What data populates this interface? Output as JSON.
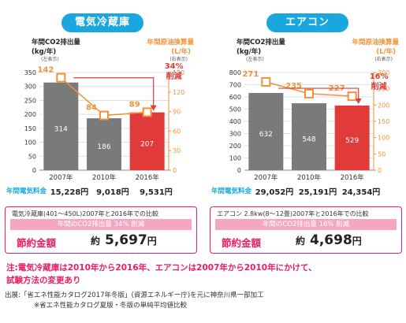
{
  "panels": [
    {
      "id": "fridge",
      "title": "電気冷蔵庫",
      "left_axis_title": "年間CO2排出量",
      "left_axis_unit": "(kg/年)",
      "left_axis_note": "(左表示)",
      "right_axis_title": "年間原油換算量",
      "right_axis_unit": "(L/年)",
      "right_axis_note": "(右表示)",
      "reduction_pct": "34%",
      "reduction_word": "削減",
      "fee_label": "年間電気料金",
      "fees": [
        "15,228円",
        "9,018円",
        "9,531円"
      ],
      "comparison_text": "電気冷蔵庫(401〜450L)2007年と2016年での比較",
      "co2_band_text": "年間のCO2排出量 34% 削減",
      "savings_label": "節約金額",
      "savings_prefix": "約",
      "savings_value": "5,697",
      "savings_unit": "円"
    },
    {
      "id": "ac",
      "title": "エアコン",
      "left_axis_title": "年間CO2排出量",
      "left_axis_unit": "(kg/年)",
      "left_axis_note": "(左表示)",
      "right_axis_title": "年間原油換算量",
      "right_axis_unit": "(L/年)",
      "right_axis_note": "(右表示)",
      "reduction_pct": "16%",
      "reduction_word": "削減",
      "fee_label": "年間電気料金",
      "fees": [
        "29,052円",
        "25,191円",
        "24,354円"
      ],
      "comparison_text": "エアコン 2.8kw(8〜12畳)2007年と2016年での比較",
      "co2_band_text": "年間のCO2排出量 16% 削減",
      "savings_label": "節約金額",
      "savings_prefix": "約",
      "savings_value": "4,698",
      "savings_unit": "円"
    }
  ],
  "note": {
    "line1": "注:電気冷蔵庫は2010年から2016年、エアコンは2007年から2010年にかけて、",
    "line2": "試験方法の変更あり"
  },
  "source": {
    "line1": "出展:「省エネ性能カタログ2017年冬版」(資源エネルギー庁)を元に神奈川県一部加工",
    "line2": "※省エネ性能カタログ夏版・冬版の単純平均値比較"
  },
  "colors": {
    "bar_gray": "#7a7a7a",
    "bar_red": "#e03a3a",
    "orange": "#f0923a",
    "blue": "#1aa7e0",
    "pink": "#e91e63",
    "band_pink": "#f4a7c3"
  },
  "chart_data": [
    {
      "type": "bar",
      "title": "電気冷蔵庫",
      "categories": [
        "2007年",
        "2010年",
        "2016年"
      ],
      "series": [
        {
          "name": "年間CO2排出量",
          "values": [
            314,
            186,
            207
          ],
          "axis": "left"
        },
        {
          "name": "年間原油換算量",
          "values": [
            142,
            84,
            89
          ],
          "axis": "right",
          "render": "line-markers"
        }
      ],
      "ylim_left": [
        0,
        350
      ],
      "yticks_left": [
        0,
        50,
        100,
        150,
        200,
        250,
        300,
        350
      ],
      "ylim_right": [
        0,
        150
      ],
      "yticks_right": [
        0,
        30,
        60,
        90,
        120,
        150
      ],
      "grid": true
    },
    {
      "type": "bar",
      "title": "エアコン",
      "categories": [
        "2007年",
        "2010年",
        "2016年"
      ],
      "series": [
        {
          "name": "年間CO2排出量",
          "values": [
            632,
            548,
            529
          ],
          "axis": "left"
        },
        {
          "name": "年間原油換算量",
          "values": [
            271,
            235,
            227
          ],
          "axis": "right",
          "render": "line-markers"
        }
      ],
      "ylim_left": [
        0,
        800
      ],
      "yticks_left": [
        0,
        100,
        200,
        300,
        400,
        500,
        600,
        700,
        800
      ],
      "ylim_right": [
        0,
        300
      ],
      "yticks_right": [
        0,
        50,
        100,
        150,
        200,
        250,
        300
      ],
      "grid": true
    }
  ]
}
